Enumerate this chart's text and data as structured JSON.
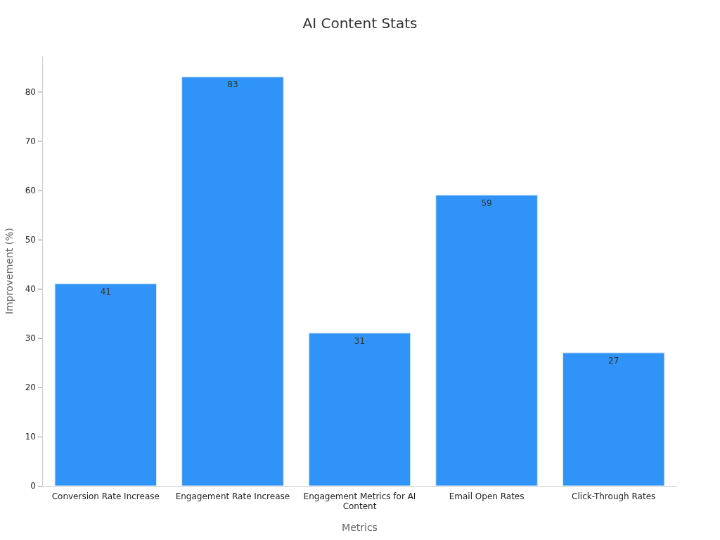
{
  "chart_data": {
    "type": "bar",
    "title": "AI Content Stats",
    "xlabel": "Metrics",
    "ylabel": "Improvement (%)",
    "categories": [
      "Conversion Rate Increase",
      "Engagement Rate Increase",
      "Engagement Metrics for AI Content",
      "Email Open Rates",
      "Click-Through Rates"
    ],
    "values": [
      41,
      83,
      31,
      59,
      27
    ],
    "color": "#3093f7",
    "ylim": [
      0,
      87.2
    ],
    "yticks": [
      0,
      10,
      20,
      30,
      40,
      50,
      60,
      70,
      80
    ],
    "data_labels": true
  }
}
